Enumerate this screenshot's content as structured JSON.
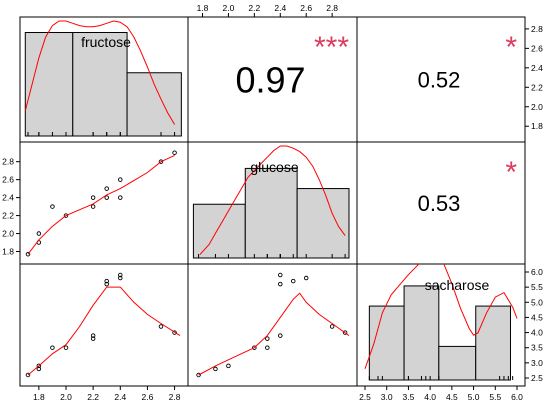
{
  "chart_data": {
    "type": "scatter",
    "variables": [
      "fructose",
      "glucose",
      "sacharose"
    ],
    "colors": {
      "fit": "#ff0000",
      "stars": "#dc3c5e",
      "bar_fill": "#d3d3d3",
      "point": "#000000"
    },
    "ranges": {
      "fructose": [
        1.72,
        2.84
      ],
      "glucose": [
        1.75,
        2.93
      ],
      "sacharose": [
        2.5,
        6.0
      ]
    },
    "observations": {
      "fructose": [
        1.72,
        1.8,
        1.8,
        1.9,
        2.0,
        2.2,
        2.2,
        2.3,
        2.3,
        2.4,
        2.4,
        2.7,
        2.8
      ],
      "glucose": [
        1.77,
        1.9,
        2.0,
        2.3,
        2.2,
        2.3,
        2.4,
        2.4,
        2.5,
        2.6,
        2.4,
        2.8,
        2.9
      ],
      "sacharose": [
        2.6,
        2.8,
        2.9,
        3.5,
        3.5,
        3.8,
        3.9,
        5.6,
        5.7,
        5.8,
        5.9,
        4.2,
        4.0
      ]
    },
    "histograms": {
      "fructose": {
        "breaks": [
          1.7,
          2.05,
          2.45,
          2.85
        ],
        "heights": [
          0.9,
          0.9,
          0.55
        ]
      },
      "glucose": {
        "breaks": [
          1.73,
          2.13,
          2.53,
          2.93
        ],
        "heights": [
          0.48,
          0.8,
          0.62
        ]
      },
      "sacharose": {
        "breaks": [
          2.6,
          3.4,
          4.2,
          5.05,
          5.85
        ],
        "heights": [
          0.66,
          0.84,
          0.3,
          0.66
        ]
      }
    },
    "densities": {
      "fructose": {
        "x": [
          1.7,
          1.75,
          1.8,
          1.85,
          1.9,
          1.95,
          2.0,
          2.05,
          2.1,
          2.15,
          2.2,
          2.25,
          2.3,
          2.35,
          2.4,
          2.45,
          2.5,
          2.55,
          2.6,
          2.65,
          2.7,
          2.75,
          2.8
        ],
        "y": [
          0.22,
          0.45,
          0.68,
          0.86,
          0.96,
          1.0,
          1.0,
          0.98,
          0.96,
          0.95,
          0.95,
          0.96,
          0.98,
          1.0,
          0.99,
          0.95,
          0.86,
          0.74,
          0.6,
          0.45,
          0.32,
          0.2,
          0.1
        ]
      },
      "glucose": {
        "x": [
          1.78,
          1.85,
          1.9,
          1.95,
          2.0,
          2.05,
          2.1,
          2.15,
          2.2,
          2.25,
          2.3,
          2.35,
          2.4,
          2.45,
          2.5,
          2.55,
          2.6,
          2.65,
          2.7,
          2.75,
          2.8,
          2.85,
          2.9
        ],
        "y": [
          0.03,
          0.12,
          0.22,
          0.32,
          0.42,
          0.52,
          0.62,
          0.72,
          0.78,
          0.84,
          0.9,
          0.96,
          1.0,
          1.0,
          0.98,
          0.95,
          0.9,
          0.82,
          0.7,
          0.56,
          0.4,
          0.28,
          0.2
        ]
      },
      "sacharose": {
        "x": [
          2.5,
          2.7,
          2.9,
          3.1,
          3.3,
          3.5,
          3.7,
          3.9,
          4.1,
          4.3,
          4.5,
          4.7,
          4.9,
          5.0,
          5.1,
          5.3,
          5.5,
          5.7,
          5.9,
          6.0
        ],
        "y": [
          0.1,
          0.32,
          0.6,
          0.76,
          0.85,
          0.94,
          1.02,
          1.1,
          1.12,
          1.05,
          0.86,
          0.64,
          0.46,
          0.4,
          0.42,
          0.6,
          0.74,
          0.78,
          0.65,
          0.55
        ]
      }
    },
    "fits": {
      "glucose_fructose": [
        [
          1.72,
          1.77
        ],
        [
          1.8,
          1.93
        ],
        [
          1.9,
          2.08
        ],
        [
          2.0,
          2.2
        ],
        [
          2.2,
          2.33
        ],
        [
          2.3,
          2.43
        ],
        [
          2.4,
          2.5
        ],
        [
          2.6,
          2.68
        ],
        [
          2.7,
          2.8
        ],
        [
          2.8,
          2.87
        ]
      ],
      "sacharose_fructose": [
        [
          1.72,
          2.6
        ],
        [
          1.8,
          2.9
        ],
        [
          1.9,
          3.3
        ],
        [
          2.0,
          3.6
        ],
        [
          2.1,
          4.2
        ],
        [
          2.2,
          4.9
        ],
        [
          2.3,
          5.5
        ],
        [
          2.4,
          5.5
        ],
        [
          2.5,
          5.0
        ],
        [
          2.6,
          4.6
        ],
        [
          2.7,
          4.3
        ],
        [
          2.84,
          3.9
        ]
      ],
      "sacharose_glucose": [
        [
          1.77,
          2.6
        ],
        [
          1.9,
          2.9
        ],
        [
          2.0,
          3.1
        ],
        [
          2.2,
          3.5
        ],
        [
          2.3,
          3.9
        ],
        [
          2.4,
          4.5
        ],
        [
          2.5,
          5.1
        ],
        [
          2.55,
          5.3
        ],
        [
          2.6,
          5.0
        ],
        [
          2.7,
          4.6
        ],
        [
          2.8,
          4.3
        ],
        [
          2.93,
          3.9
        ]
      ]
    },
    "correlations": [
      {
        "pair": "fructose-glucose",
        "r": "0.97",
        "stars": "***"
      },
      {
        "pair": "fructose-sacharose",
        "r": "0.52",
        "stars": "*"
      },
      {
        "pair": "glucose-sacharose",
        "r": "0.53",
        "stars": "*"
      }
    ],
    "ticks": {
      "fructose": [
        "1.8",
        "2.0",
        "2.2",
        "2.4",
        "2.6",
        "2.8"
      ],
      "glucose": [
        "1.8",
        "2.0",
        "2.2",
        "2.4",
        "2.6",
        "2.8"
      ],
      "sacharose": [
        "2.5",
        "3.0",
        "3.5",
        "4.0",
        "4.5",
        "5.0",
        "5.5",
        "6.0"
      ]
    }
  }
}
